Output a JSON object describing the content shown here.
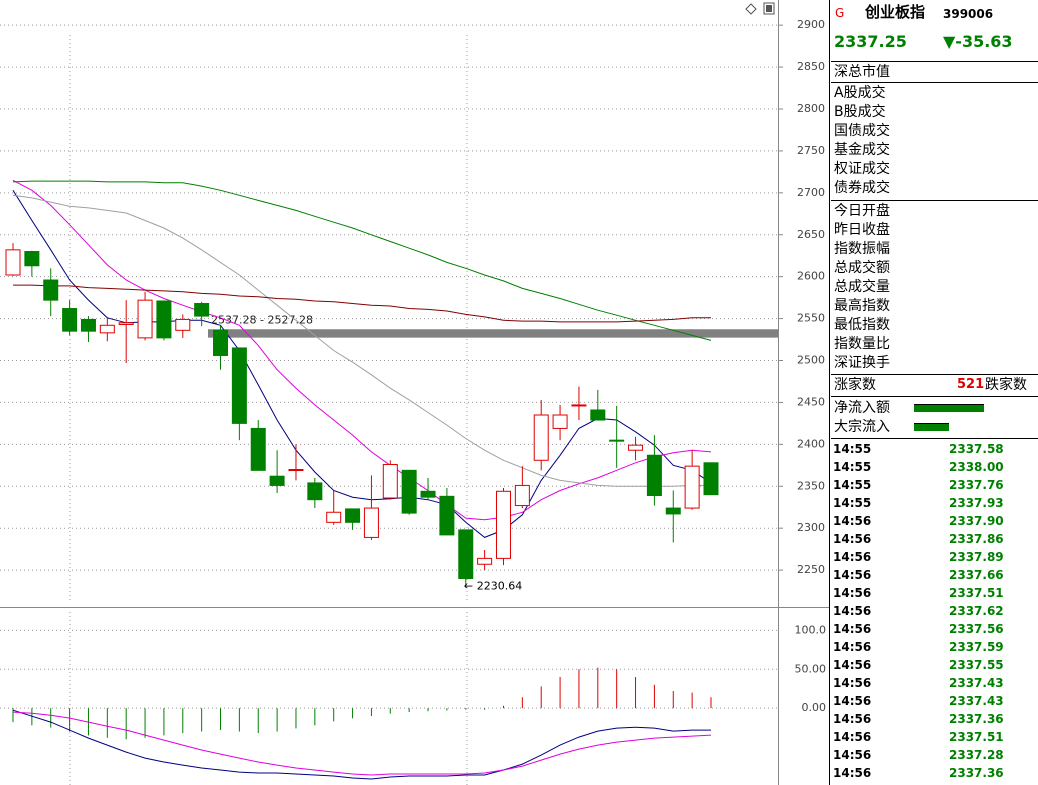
{
  "chart_data": [
    {
      "type": "candlestick",
      "ylim": [
        2206,
        2930
      ],
      "yticks": [
        2250,
        2300,
        2350,
        2400,
        2450,
        2500,
        2550,
        2600,
        2650,
        2700,
        2750,
        2800,
        2850,
        2900
      ],
      "grid": true,
      "up_color": "#e00000",
      "down_color": "#008000",
      "open": [
        2602,
        2630,
        2596,
        2562,
        2549,
        2533,
        2543,
        2527,
        2571,
        2536,
        2568,
        2536,
        2515,
        2419,
        2362,
        2369,
        2354,
        2307,
        2323,
        2289,
        2336,
        2369,
        2344,
        2338,
        2298,
        2257,
        2264,
        2327,
        2381,
        2419,
        2446,
        2441,
        2405,
        2393,
        2387,
        2324,
        2324,
        2378
      ],
      "high": [
        2640,
        2631,
        2610,
        2572,
        2553,
        2552,
        2572,
        2582,
        2571,
        2555,
        2570,
        2542,
        2515,
        2429,
        2393,
        2400,
        2360,
        2345,
        2323,
        2363,
        2381,
        2369,
        2360,
        2348,
        2298,
        2274,
        2348,
        2374,
        2453,
        2447,
        2469,
        2465,
        2446,
        2409,
        2411,
        2345,
        2393,
        2378
      ],
      "low": [
        2601,
        2600,
        2553,
        2530,
        2522,
        2523,
        2497,
        2524,
        2524,
        2527,
        2541,
        2489,
        2405,
        2369,
        2342,
        2357,
        2324,
        2304,
        2298,
        2286,
        2334,
        2316,
        2334,
        2292,
        2230.64,
        2250,
        2256,
        2324,
        2369,
        2405,
        2429,
        2429,
        2372,
        2381,
        2327,
        2283,
        2322,
        2340
      ],
      "close": [
        2632,
        2613,
        2572,
        2535,
        2535,
        2542,
        2545,
        2572,
        2527,
        2549,
        2553,
        2506,
        2425,
        2369,
        2351,
        2370,
        2334,
        2319,
        2307,
        2324,
        2376,
        2318,
        2337,
        2292,
        2240,
        2264,
        2344,
        2351,
        2435,
        2435,
        2447,
        2429,
        2404,
        2399,
        2339,
        2317,
        2374,
        2340
      ],
      "series": [
        {
          "color": "#000080",
          "values": [
            2703,
            2667,
            2632,
            2596,
            2572,
            2551,
            2545,
            2546,
            2546,
            2548,
            2548,
            2542,
            2512,
            2471,
            2429,
            2393,
            2367,
            2345,
            2337,
            2334,
            2335,
            2337,
            2334,
            2328,
            2307,
            2289,
            2298,
            2316,
            2357,
            2387,
            2419,
            2431,
            2429,
            2415,
            2399,
            2375,
            2369,
            2354
          ]
        },
        {
          "color": "#e000e0",
          "values": [
            2715,
            2703,
            2685,
            2662,
            2638,
            2614,
            2596,
            2584,
            2574,
            2566,
            2558,
            2551,
            2542,
            2518,
            2489,
            2467,
            2447,
            2429,
            2411,
            2391,
            2375,
            2360,
            2345,
            2328,
            2312,
            2310,
            2313,
            2319,
            2334,
            2345,
            2353,
            2360,
            2369,
            2378,
            2385,
            2390,
            2393,
            2391
          ]
        },
        {
          "color": "#a0a0a0",
          "values": [
            2697,
            2694,
            2689,
            2684,
            2682,
            2679,
            2676,
            2667,
            2658,
            2646,
            2632,
            2617,
            2602,
            2584,
            2566,
            2548,
            2530,
            2512,
            2498,
            2483,
            2467,
            2453,
            2438,
            2423,
            2407,
            2393,
            2381,
            2372,
            2363,
            2357,
            2354,
            2351,
            2350,
            2350,
            2350,
            2350,
            2351,
            2351
          ]
        },
        {
          "color": "#008000",
          "values": [
            2713,
            2714,
            2714,
            2714,
            2714,
            2713,
            2713,
            2713,
            2712,
            2712,
            2708,
            2703,
            2697,
            2691,
            2685,
            2679,
            2672,
            2665,
            2658,
            2650,
            2642,
            2634,
            2626,
            2617,
            2610,
            2602,
            2595,
            2586,
            2580,
            2574,
            2567,
            2560,
            2554,
            2548,
            2542,
            2536,
            2530,
            2524
          ]
        },
        {
          "color": "#800000",
          "values": [
            2590,
            2590,
            2589,
            2589,
            2587,
            2586,
            2585,
            2584,
            2583,
            2582,
            2580,
            2579,
            2577,
            2576,
            2574,
            2573,
            2571,
            2570,
            2568,
            2566,
            2565,
            2562,
            2561,
            2559,
            2555,
            2552,
            2548,
            2547,
            2547,
            2546,
            2546,
            2546,
            2546,
            2547,
            2548,
            2549,
            2551,
            2551
          ]
        }
      ],
      "band": {
        "label": "2537.28 - 2527.28",
        "high": 2537.28,
        "low": 2527.28,
        "color": "#808080"
      },
      "annotation": {
        "text": "2230.64",
        "value": 2230.64
      }
    },
    {
      "type": "bar",
      "ylim": [
        -100,
        130
      ],
      "yticks": [
        {
          "value": 0,
          "label": "0.00"
        },
        {
          "value": 50,
          "label": "50.00"
        },
        {
          "value": 100,
          "label": "100.0"
        }
      ],
      "grid": true,
      "up_color": "#e00000",
      "down_color": "#008000",
      "values": [
        -18,
        -22,
        -25,
        -30,
        -35,
        -38,
        -40,
        -38,
        -35,
        -32,
        -30,
        -28,
        -30,
        -32,
        -30,
        -26,
        -22,
        -17,
        -13,
        -10,
        -7,
        -5,
        -4,
        -3,
        -2,
        -2,
        3,
        14,
        28,
        40,
        50,
        52,
        50,
        40,
        30,
        22,
        20,
        14
      ],
      "series": [
        {
          "color": "#000080",
          "values": [
            -2.6,
            -10.3,
            -17.9,
            -28.2,
            -38.5,
            -47.4,
            -56.4,
            -64.1,
            -69.2,
            -73.1,
            -76.9,
            -79.5,
            -82.1,
            -83.3,
            -83.3,
            -84.6,
            -85.9,
            -87.2,
            -89.7,
            -91.0,
            -88.5,
            -87.2,
            -87.2,
            -87.2,
            -85.9,
            -85.9,
            -79.5,
            -71.8,
            -60.3,
            -47.4,
            -37.2,
            -29.5,
            -25.6,
            -24.4,
            -25.6,
            -29.5,
            -28.2,
            -28.2
          ]
        },
        {
          "color": "#e000e0",
          "values": [
            -5.1,
            -6.4,
            -9.0,
            -12.8,
            -17.9,
            -23.1,
            -28.2,
            -34.6,
            -41.0,
            -47.4,
            -53.8,
            -59.0,
            -64.1,
            -69.2,
            -73.1,
            -76.9,
            -79.5,
            -82.1,
            -84.6,
            -85.9,
            -84.6,
            -84.6,
            -84.6,
            -84.6,
            -84.6,
            -83.3,
            -79.5,
            -74.4,
            -66.7,
            -59.0,
            -52.6,
            -47.4,
            -43.6,
            -41.0,
            -38.5,
            -37.2,
            -35.9,
            -34.6
          ]
        }
      ]
    }
  ],
  "quote_panel": {
    "flag": "G",
    "name": "创业板指",
    "code": "399006",
    "price": "2337.25",
    "change": "▼-35.63",
    "market_value": "深总市值",
    "turnover": [
      "A股成交",
      "B股成交",
      "国债成交",
      "基金成交",
      "权证成交",
      "债券成交"
    ],
    "stats": [
      "今日开盘",
      "昨日收盘",
      "指数振幅",
      "总成交额",
      "总成交量",
      "最高指数",
      "最低指数",
      "指数量比",
      "深证换手"
    ],
    "rise_label": "涨家数",
    "rise_count": "521",
    "fall_label": "跌家数",
    "flows": [
      "净流入额",
      "大宗流入"
    ],
    "ticks": [
      [
        "14:55",
        "2337.58"
      ],
      [
        "14:55",
        "2338.00"
      ],
      [
        "14:55",
        "2337.76"
      ],
      [
        "14:55",
        "2337.93"
      ],
      [
        "14:56",
        "2337.90"
      ],
      [
        "14:56",
        "2337.86"
      ],
      [
        "14:56",
        "2337.89"
      ],
      [
        "14:56",
        "2337.66"
      ],
      [
        "14:56",
        "2337.51"
      ],
      [
        "14:56",
        "2337.62"
      ],
      [
        "14:56",
        "2337.56"
      ],
      [
        "14:56",
        "2337.59"
      ],
      [
        "14:56",
        "2337.55"
      ],
      [
        "14:56",
        "2337.43"
      ],
      [
        "14:56",
        "2337.43"
      ],
      [
        "14:56",
        "2337.36"
      ],
      [
        "14:56",
        "2337.51"
      ],
      [
        "14:56",
        "2337.28"
      ],
      [
        "14:56",
        "2337.36"
      ]
    ]
  }
}
